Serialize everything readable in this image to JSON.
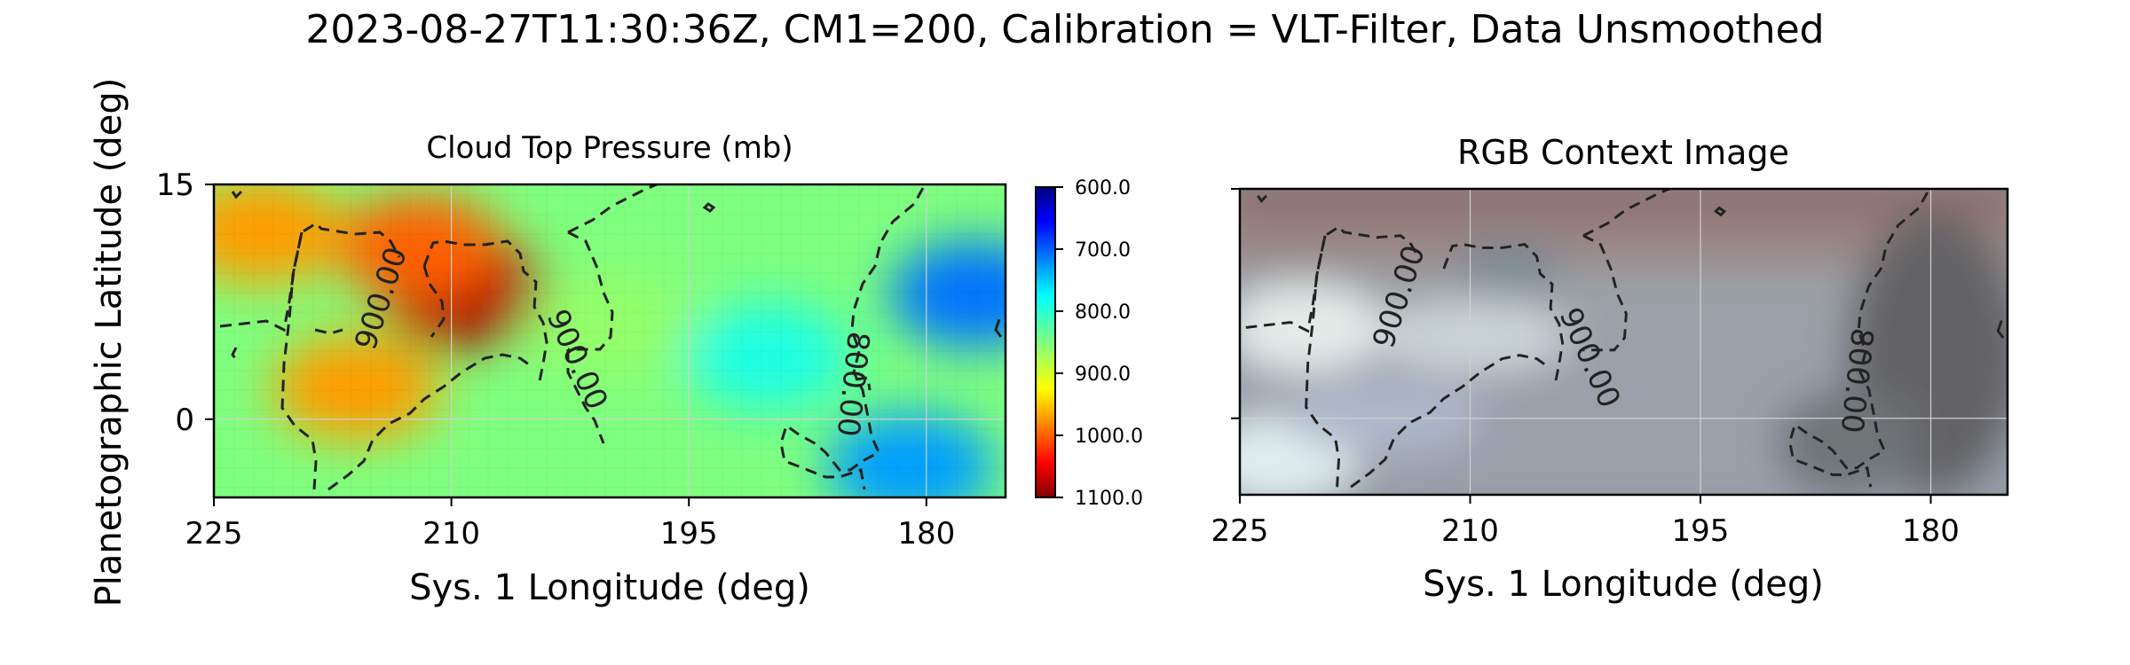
{
  "figure_title": "2023-08-27T11:30:36Z, CM1=200, Calibration = VLT-Filter, Data Unsmoothed",
  "colors": {
    "contour": "#222222",
    "grid": "#d0d0d0",
    "frame": "#000000"
  },
  "chart_data": [
    {
      "type": "heatmap",
      "title": "Cloud Top Pressure (mb)",
      "xlabel": "Sys. 1 Longitude (deg)",
      "ylabel": "Planetographic Latitude (deg)",
      "xlim": [
        225,
        175
      ],
      "ylim": [
        -5,
        15
      ],
      "x_ticks": [
        "225",
        "210",
        "195",
        "180"
      ],
      "x_tick_values": [
        225,
        210,
        195,
        180
      ],
      "y_ticks": [
        "15",
        "0"
      ],
      "y_tick_values": [
        15,
        0
      ],
      "grid": true,
      "colormap": "jet_r",
      "color_range": [
        600,
        1100
      ],
      "colorbar_ticks": [
        "600.0",
        "700.0",
        "800.0",
        "900.0",
        "1000.0",
        "1100.0"
      ],
      "colorbar_tick_values": [
        600,
        700,
        800,
        900,
        1000,
        1100
      ],
      "contour_levels": [
        800,
        900
      ],
      "contour_labels": [
        "900.00",
        "900.00",
        "800.00"
      ],
      "regions": [
        {
          "description": "cloud top pressure ~1080 mb",
          "lon": 209,
          "lat": 8,
          "value": 1080
        },
        {
          "description": "cloud top pressure ~990 mb",
          "lon": 212,
          "lat": 11,
          "value": 990
        },
        {
          "description": "cloud top pressure ~960 mb",
          "lon": 222,
          "lat": 12,
          "value": 960
        },
        {
          "description": "cloud top pressure ~960 mb",
          "lon": 216,
          "lat": 2,
          "value": 960
        },
        {
          "description": "cloud top pressure ~860 mb",
          "lon": 200,
          "lat": 6,
          "value": 860
        },
        {
          "description": "cloud top pressure ~800 mb",
          "lon": 190,
          "lat": 4,
          "value": 800
        },
        {
          "description": "cloud top pressure ~720 mb",
          "lon": 177,
          "lat": 8,
          "value": 720
        },
        {
          "description": "cloud top pressure ~740 mb",
          "lon": 181,
          "lat": -3,
          "value": 740
        }
      ]
    },
    {
      "type": "heatmap",
      "title": "RGB Context Image",
      "xlabel": "Sys. 1 Longitude (deg)",
      "xlim": [
        225,
        175
      ],
      "ylim": [
        -5,
        15
      ],
      "x_ticks": [
        "225",
        "210",
        "195",
        "180"
      ],
      "x_tick_values": [
        225,
        210,
        195,
        180
      ],
      "y_tick_values": [
        15,
        0
      ],
      "grid": true,
      "contour_levels": [
        800,
        900
      ],
      "contour_labels": [
        "900.00",
        "900.00",
        "800.00"
      ]
    }
  ]
}
